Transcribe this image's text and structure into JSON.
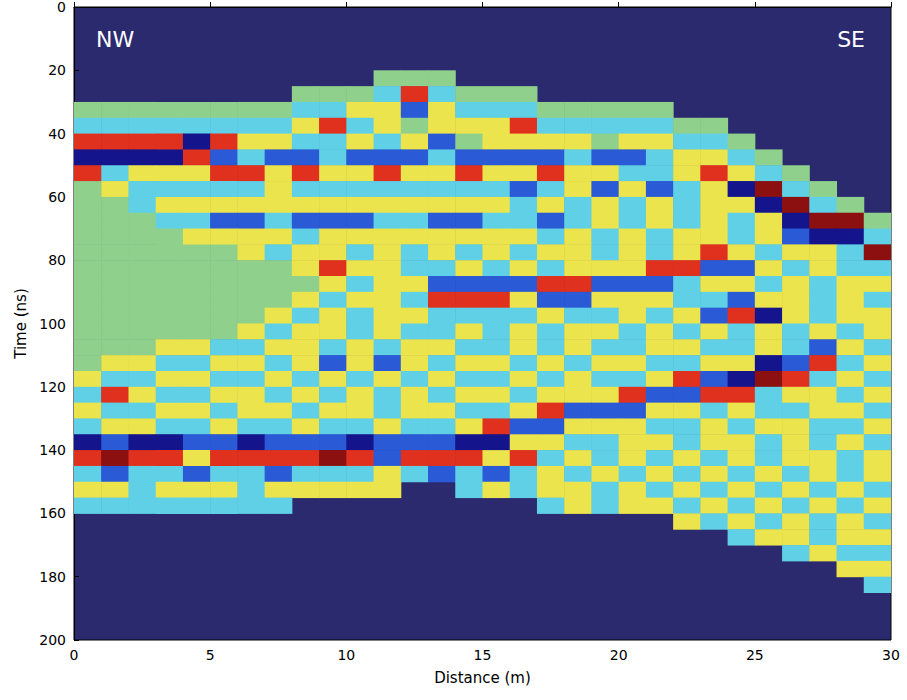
{
  "chart_data": {
    "type": "heatmap",
    "x_label": "Distance (m)",
    "y_label": "Time (ns)",
    "annotations": [
      "NW",
      "SE"
    ],
    "xlim": [
      0,
      30
    ],
    "xticks": [
      0,
      5,
      10,
      15,
      20,
      25,
      30
    ],
    "ylim": [
      200,
      0
    ],
    "yticks": [
      0,
      20,
      40,
      60,
      80,
      100,
      120,
      140,
      160,
      180,
      200
    ],
    "grid": false,
    "color_range": [
      -3,
      3
    ],
    "x_edges": [
      0,
      1,
      2,
      3,
      4,
      5,
      6,
      7,
      8,
      9,
      10,
      11,
      12,
      13,
      14,
      15,
      16,
      17,
      18,
      19,
      20,
      21,
      22,
      23,
      24,
      25,
      26,
      27,
      28,
      29,
      30
    ],
    "y_edges": [
      0,
      5,
      10,
      15,
      20,
      25,
      30,
      35,
      40,
      45,
      50,
      55,
      60,
      65,
      70,
      75,
      80,
      85,
      90,
      95,
      100,
      105,
      110,
      115,
      120,
      125,
      130,
      135,
      140,
      145,
      150,
      155,
      160,
      165,
      170,
      175,
      180,
      185,
      190,
      195,
      200
    ],
    "amplitude": [
      [
        null,
        null,
        null,
        null,
        null,
        null,
        null,
        null,
        null,
        null,
        null,
        null,
        null,
        null,
        null,
        null,
        null,
        null,
        null,
        null,
        null,
        null,
        null,
        null,
        null,
        null,
        null,
        null,
        null,
        null
      ],
      [
        null,
        null,
        null,
        null,
        null,
        null,
        null,
        null,
        null,
        null,
        null,
        null,
        null,
        null,
        null,
        null,
        null,
        null,
        null,
        null,
        null,
        null,
        null,
        null,
        null,
        null,
        null,
        null,
        null,
        null
      ],
      [
        null,
        null,
        null,
        null,
        null,
        null,
        null,
        null,
        null,
        null,
        null,
        null,
        null,
        null,
        null,
        null,
        null,
        null,
        null,
        null,
        null,
        null,
        null,
        null,
        null,
        null,
        null,
        null,
        null,
        null
      ],
      [
        null,
        null,
        null,
        null,
        null,
        null,
        null,
        null,
        null,
        null,
        null,
        null,
        null,
        null,
        null,
        null,
        null,
        null,
        null,
        null,
        null,
        null,
        null,
        null,
        null,
        null,
        null,
        null,
        null,
        null
      ],
      [
        null,
        null,
        null,
        null,
        null,
        null,
        null,
        null,
        null,
        null,
        null,
        0,
        0,
        0,
        null,
        null,
        null,
        null,
        null,
        null,
        null,
        null,
        null,
        null,
        null,
        null,
        null,
        null,
        null,
        null
      ],
      [
        null,
        null,
        null,
        null,
        null,
        null,
        null,
        null,
        0,
        0,
        0,
        -1,
        2,
        -1,
        0,
        0,
        0,
        null,
        null,
        null,
        null,
        null,
        null,
        null,
        null,
        null,
        null,
        null,
        null,
        null
      ],
      [
        0,
        0,
        0,
        0,
        0,
        0,
        0,
        0,
        -1,
        -1,
        1,
        1,
        -2,
        1,
        -1,
        -1,
        -1,
        0,
        0,
        0,
        0,
        0,
        null,
        null,
        null,
        null,
        null,
        null,
        null,
        null
      ],
      [
        -1,
        -1,
        -1,
        -1,
        -1,
        -1,
        -1,
        -1,
        1,
        2,
        -1,
        1,
        0,
        1,
        1,
        1,
        2,
        -1,
        -1,
        -1,
        -1,
        -1,
        0,
        0,
        null,
        null,
        null,
        null,
        null,
        null
      ],
      [
        2,
        2,
        2,
        2,
        -3,
        2,
        1,
        1,
        -1,
        -1,
        1,
        -1,
        1,
        -2,
        0,
        1,
        1,
        1,
        1,
        0,
        1,
        1,
        -1,
        -1,
        0,
        null,
        null,
        null,
        null,
        null
      ],
      [
        -3,
        -3,
        -3,
        -3,
        2,
        -2,
        -1,
        -2,
        -2,
        -1,
        -2,
        -2,
        -2,
        -1,
        -2,
        -2,
        -2,
        -2,
        -1,
        -2,
        -2,
        -1,
        1,
        1,
        -1,
        0,
        null,
        null,
        null,
        null
      ],
      [
        2,
        -1,
        1,
        1,
        1,
        2,
        2,
        1,
        2,
        1,
        1,
        2,
        1,
        1,
        2,
        1,
        1,
        2,
        1,
        1,
        -1,
        -1,
        1,
        2,
        1,
        -1,
        0,
        null,
        null,
        null
      ],
      [
        0,
        1,
        -1,
        -1,
        -1,
        -1,
        -1,
        1,
        -1,
        -1,
        -1,
        -1,
        -1,
        -1,
        -1,
        -1,
        -2,
        -1,
        1,
        -2,
        1,
        -2,
        -1,
        1,
        -3,
        3,
        -1,
        0,
        null,
        null
      ],
      [
        0,
        0,
        -1,
        1,
        1,
        1,
        1,
        1,
        1,
        1,
        1,
        1,
        1,
        1,
        1,
        1,
        -1,
        1,
        -1,
        1,
        -1,
        1,
        -1,
        1,
        1,
        -3,
        3,
        -1,
        0,
        null
      ],
      [
        0,
        0,
        0,
        -1,
        -1,
        -2,
        -2,
        -1,
        -2,
        -2,
        -2,
        -1,
        -1,
        -2,
        -2,
        -1,
        -1,
        -2,
        -1,
        1,
        -1,
        1,
        -1,
        1,
        -1,
        1,
        -3,
        3,
        3,
        0
      ],
      [
        0,
        0,
        0,
        0,
        1,
        1,
        1,
        1,
        -1,
        1,
        1,
        1,
        1,
        1,
        1,
        1,
        1,
        -1,
        1,
        -1,
        1,
        -1,
        1,
        1,
        -1,
        1,
        -2,
        -3,
        -3,
        -1
      ],
      [
        0,
        0,
        0,
        0,
        0,
        0,
        1,
        -1,
        1,
        1,
        -1,
        1,
        -1,
        1,
        -1,
        1,
        -1,
        1,
        1,
        -1,
        1,
        -1,
        1,
        2,
        1,
        -1,
        1,
        1,
        -1,
        3
      ],
      [
        0,
        0,
        0,
        0,
        0,
        0,
        0,
        0,
        1,
        2,
        1,
        1,
        -1,
        -1,
        1,
        -1,
        1,
        -1,
        1,
        1,
        1,
        2,
        2,
        -2,
        -2,
        1,
        -1,
        1,
        -1,
        -1
      ],
      [
        0,
        0,
        0,
        0,
        0,
        0,
        0,
        0,
        0,
        1,
        -1,
        1,
        1,
        -2,
        -2,
        -2,
        -2,
        2,
        2,
        -2,
        -2,
        -2,
        -1,
        1,
        1,
        -1,
        1,
        -1,
        1,
        1
      ],
      [
        0,
        0,
        0,
        0,
        0,
        0,
        0,
        0,
        1,
        -1,
        1,
        1,
        -1,
        2,
        2,
        2,
        1,
        -2,
        -2,
        1,
        1,
        1,
        -1,
        -1,
        -2,
        1,
        1,
        -1,
        1,
        -1
      ],
      [
        0,
        0,
        0,
        0,
        0,
        0,
        0,
        1,
        -1,
        1,
        -1,
        1,
        1,
        -1,
        -1,
        -1,
        -1,
        1,
        -1,
        -1,
        1,
        -1,
        1,
        -2,
        2,
        -3,
        1,
        -1,
        1,
        1
      ],
      [
        0,
        0,
        0,
        0,
        0,
        0,
        1,
        -1,
        1,
        1,
        -1,
        1,
        -1,
        -1,
        1,
        -1,
        1,
        -1,
        1,
        1,
        -1,
        1,
        -1,
        1,
        -1,
        1,
        -1,
        1,
        -1,
        1
      ],
      [
        0,
        0,
        0,
        1,
        1,
        -1,
        -1,
        1,
        1,
        -1,
        1,
        -1,
        1,
        1,
        -1,
        -1,
        1,
        -1,
        1,
        -1,
        -1,
        1,
        1,
        -1,
        -1,
        1,
        -1,
        -2,
        1,
        -1
      ],
      [
        0,
        1,
        1,
        -1,
        -1,
        1,
        1,
        -1,
        1,
        -2,
        1,
        -2,
        1,
        -1,
        1,
        1,
        -1,
        1,
        -1,
        1,
        1,
        -1,
        -1,
        1,
        1,
        -3,
        -2,
        2,
        -1,
        1
      ],
      [
        1,
        -1,
        -1,
        1,
        1,
        -1,
        -1,
        1,
        -1,
        1,
        -1,
        1,
        -1,
        1,
        -1,
        -1,
        1,
        -1,
        1,
        -1,
        -1,
        1,
        2,
        -2,
        -3,
        3,
        2,
        -1,
        1,
        -1
      ],
      [
        -1,
        2,
        1,
        -1,
        -1,
        1,
        1,
        -1,
        1,
        -1,
        1,
        -1,
        1,
        -1,
        1,
        1,
        -1,
        1,
        1,
        1,
        2,
        -2,
        -2,
        2,
        2,
        -1,
        1,
        1,
        -1,
        1
      ],
      [
        1,
        -1,
        -1,
        1,
        1,
        -1,
        1,
        1,
        -1,
        1,
        1,
        -1,
        1,
        1,
        -1,
        -1,
        1,
        2,
        -2,
        -2,
        -2,
        1,
        1,
        -1,
        1,
        -1,
        -1,
        1,
        1,
        -1
      ],
      [
        -1,
        1,
        1,
        -1,
        -1,
        1,
        -1,
        -1,
        1,
        -1,
        -1,
        1,
        -1,
        -1,
        1,
        2,
        -2,
        -2,
        1,
        1,
        1,
        -1,
        -1,
        1,
        -1,
        1,
        1,
        -1,
        -1,
        1
      ],
      [
        -3,
        -2,
        -3,
        -3,
        -2,
        -2,
        -3,
        -2,
        -2,
        -2,
        -3,
        -2,
        -2,
        -2,
        -3,
        -3,
        1,
        1,
        -1,
        -1,
        1,
        1,
        -1,
        1,
        1,
        -1,
        1,
        -1,
        1,
        -1
      ],
      [
        2,
        3,
        2,
        2,
        1,
        2,
        2,
        2,
        2,
        3,
        2,
        -2,
        2,
        2,
        2,
        1,
        2,
        -1,
        1,
        -1,
        1,
        -1,
        1,
        -1,
        1,
        -1,
        1,
        1,
        -1,
        1
      ],
      [
        -1,
        -2,
        -1,
        -1,
        -2,
        -1,
        -1,
        -2,
        -1,
        -1,
        -1,
        1,
        -1,
        -2,
        -1,
        -2,
        -1,
        1,
        -1,
        1,
        -1,
        1,
        -1,
        1,
        -1,
        1,
        -1,
        1,
        -1,
        1
      ],
      [
        1,
        1,
        -1,
        1,
        1,
        1,
        -1,
        1,
        1,
        1,
        1,
        1,
        null,
        null,
        -1,
        1,
        -1,
        1,
        1,
        -1,
        1,
        -1,
        1,
        -1,
        1,
        -1,
        1,
        -1,
        1,
        -1
      ],
      [
        -1,
        -1,
        -1,
        -1,
        -1,
        -1,
        -1,
        -1,
        null,
        null,
        null,
        null,
        null,
        null,
        null,
        null,
        null,
        -1,
        1,
        -1,
        1,
        1,
        -1,
        1,
        -1,
        1,
        -1,
        1,
        -1,
        1
      ],
      [
        null,
        null,
        null,
        null,
        null,
        null,
        null,
        null,
        null,
        null,
        null,
        null,
        null,
        null,
        null,
        null,
        null,
        null,
        null,
        null,
        null,
        null,
        1,
        -1,
        1,
        -1,
        1,
        -1,
        1,
        -1
      ],
      [
        null,
        null,
        null,
        null,
        null,
        null,
        null,
        null,
        null,
        null,
        null,
        null,
        null,
        null,
        null,
        null,
        null,
        null,
        null,
        null,
        null,
        null,
        null,
        null,
        -1,
        1,
        1,
        -1,
        1,
        1
      ],
      [
        null,
        null,
        null,
        null,
        null,
        null,
        null,
        null,
        null,
        null,
        null,
        null,
        null,
        null,
        null,
        null,
        null,
        null,
        null,
        null,
        null,
        null,
        null,
        null,
        null,
        null,
        -1,
        1,
        -1,
        -1
      ],
      [
        null,
        null,
        null,
        null,
        null,
        null,
        null,
        null,
        null,
        null,
        null,
        null,
        null,
        null,
        null,
        null,
        null,
        null,
        null,
        null,
        null,
        null,
        null,
        null,
        null,
        null,
        null,
        null,
        1,
        1
      ],
      [
        null,
        null,
        null,
        null,
        null,
        null,
        null,
        null,
        null,
        null,
        null,
        null,
        null,
        null,
        null,
        null,
        null,
        null,
        null,
        null,
        null,
        null,
        null,
        null,
        null,
        null,
        null,
        null,
        null,
        -1
      ],
      [
        null,
        null,
        null,
        null,
        null,
        null,
        null,
        null,
        null,
        null,
        null,
        null,
        null,
        null,
        null,
        null,
        null,
        null,
        null,
        null,
        null,
        null,
        null,
        null,
        null,
        null,
        null,
        null,
        null,
        null
      ],
      [
        null,
        null,
        null,
        null,
        null,
        null,
        null,
        null,
        null,
        null,
        null,
        null,
        null,
        null,
        null,
        null,
        null,
        null,
        null,
        null,
        null,
        null,
        null,
        null,
        null,
        null,
        null,
        null,
        null,
        null
      ],
      [
        null,
        null,
        null,
        null,
        null,
        null,
        null,
        null,
        null,
        null,
        null,
        null,
        null,
        null,
        null,
        null,
        null,
        null,
        null,
        null,
        null,
        null,
        null,
        null,
        null,
        null,
        null,
        null,
        null,
        null
      ]
    ]
  }
}
